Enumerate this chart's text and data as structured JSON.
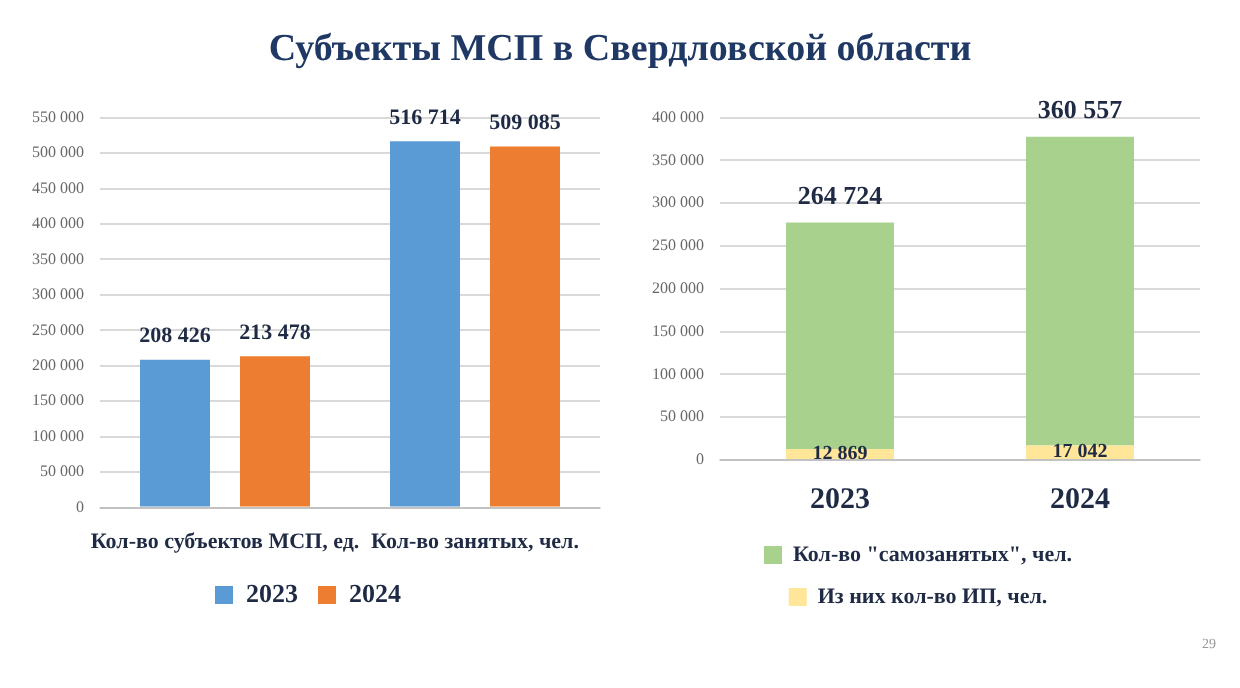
{
  "chart_data": [
    {
      "type": "bar",
      "title": "Субъекты МСП в Свердловской области",
      "categories": [
        "Кол-во субъектов МСП, ед.",
        "Кол-во занятых, чел."
      ],
      "series": [
        {
          "name": "2023",
          "color": "#5b9bd5",
          "values": [
            208426,
            516714
          ],
          "value_labels": [
            "208 426",
            "516 714"
          ]
        },
        {
          "name": "2024",
          "color": "#ed7d31",
          "values": [
            213478,
            509085
          ],
          "value_labels": [
            "213 478",
            "509 085"
          ]
        }
      ],
      "ylim": [
        0,
        550000
      ],
      "yticks": [
        {
          "value": 0,
          "label": "0"
        },
        {
          "value": 50000,
          "label": "50 000"
        },
        {
          "value": 100000,
          "label": "100 000"
        },
        {
          "value": 150000,
          "label": "150 000"
        },
        {
          "value": 200000,
          "label": "200 000"
        },
        {
          "value": 250000,
          "label": "250 000"
        },
        {
          "value": 300000,
          "label": "300 000"
        },
        {
          "value": 350000,
          "label": "350 000"
        },
        {
          "value": 400000,
          "label": "400 000"
        },
        {
          "value": 450000,
          "label": "450 000"
        },
        {
          "value": 500000,
          "label": "500 000"
        },
        {
          "value": 550000,
          "label": "550 000"
        }
      ],
      "grid": "y",
      "legend": "bottom"
    },
    {
      "type": "bar",
      "categories": [
        "2023",
        "2024"
      ],
      "stacked": true,
      "series": [
        {
          "name": "Из них кол-во ИП, чел.",
          "color": "#ffe699",
          "values": [
            12869,
            17042
          ],
          "value_labels": [
            "12 869",
            "17 042"
          ]
        },
        {
          "name": "Кол-во \"самозанятых\", чел.",
          "color": "#a9d18e",
          "values": [
            264724,
            360557
          ],
          "value_labels": [
            "264 724",
            "360 557"
          ]
        }
      ],
      "ylim": [
        0,
        400000
      ],
      "yticks": [
        {
          "value": 0,
          "label": "0"
        },
        {
          "value": 50000,
          "label": "50 000"
        },
        {
          "value": 100000,
          "label": "100 000"
        },
        {
          "value": 150000,
          "label": "150 000"
        },
        {
          "value": 200000,
          "label": "200 000"
        },
        {
          "value": 250000,
          "label": "250 000"
        },
        {
          "value": 300000,
          "label": "300 000"
        },
        {
          "value": 350000,
          "label": "350 000"
        },
        {
          "value": 400000,
          "label": "400 000"
        }
      ],
      "grid": "y",
      "legend": "bottom",
      "annotations": [
        "29"
      ]
    }
  ]
}
